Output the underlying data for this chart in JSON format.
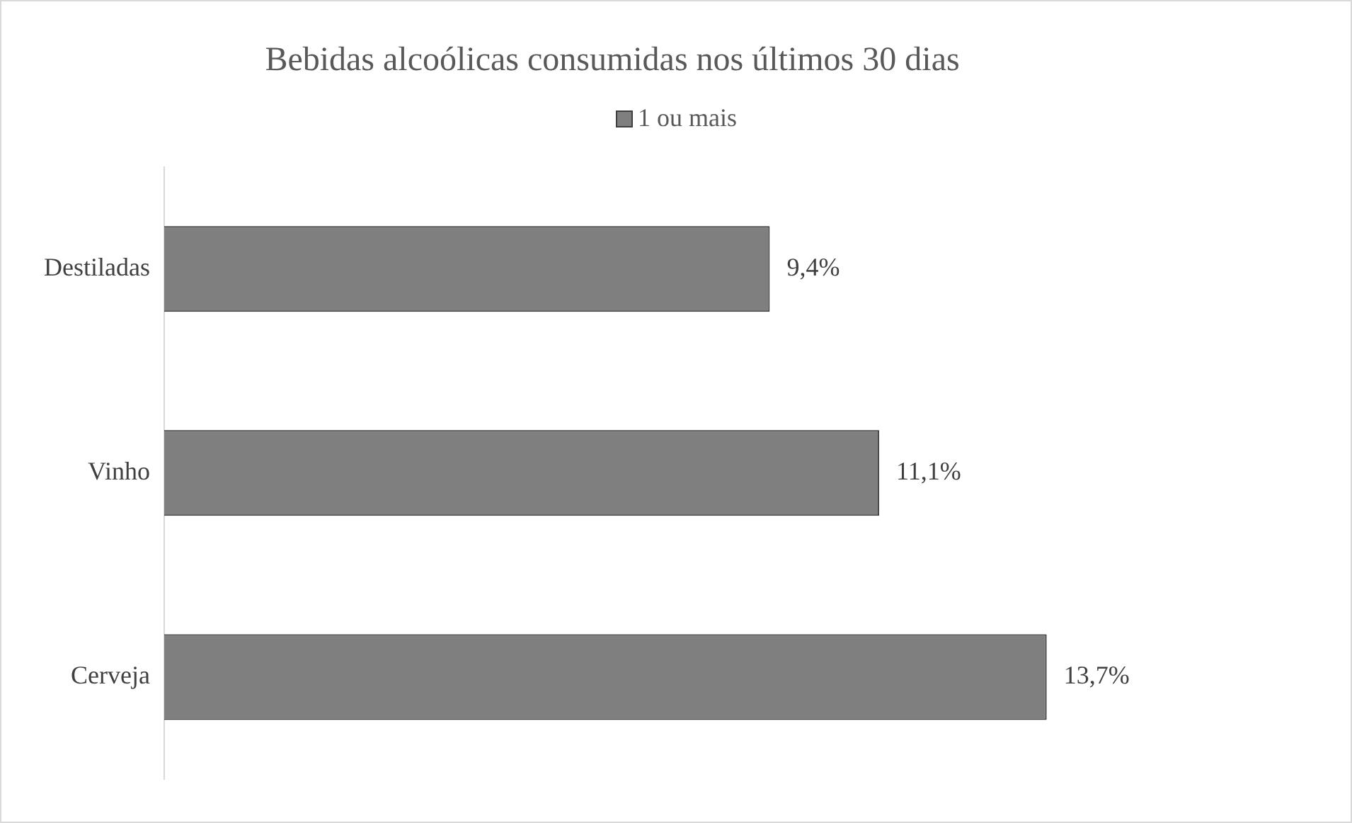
{
  "chart_data": {
    "type": "bar",
    "orientation": "horizontal",
    "title": "Bebidas alcoólicas consumidas nos últimos 30 dias",
    "categories": [
      "Destiladas",
      "Vinho",
      "Cerveja"
    ],
    "series": [
      {
        "name": "1 ou mais",
        "color": "#7f7f7f",
        "values": [
          9.4,
          11.1,
          13.7
        ],
        "value_labels": [
          "9,4%",
          "11,1%",
          "13,7%"
        ]
      }
    ],
    "legend": "top"
  }
}
